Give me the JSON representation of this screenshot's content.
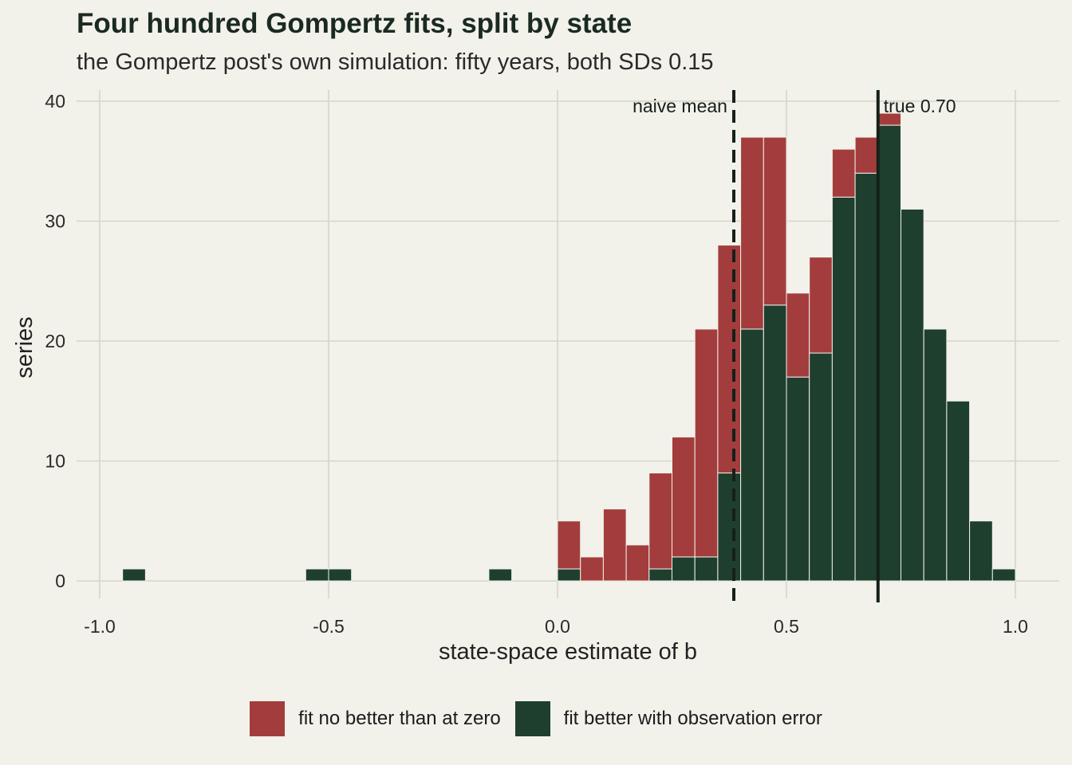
{
  "title": "Four hundred Gompertz fits, split by state",
  "subtitle": "the Gompertz post's own simulation: fifty years, both SDs 0.15",
  "colors": {
    "background": "#f2f1ea",
    "grid": "#d6d6c6",
    "bad": "#a33d3d",
    "good": "#1f3f2e",
    "ink": "#15201a"
  },
  "chart_data": {
    "type": "bar",
    "stacked": true,
    "xlabel": "state-space estimate of b",
    "ylabel": "series",
    "xlim": [
      -1.05,
      1.1
    ],
    "ylim": [
      0,
      40
    ],
    "xticks": [
      -1.0,
      -0.5,
      0.0,
      0.5,
      1.0
    ],
    "xtick_labels": [
      "-1.0",
      "-0.5",
      "0.0",
      "0.5",
      "1.0"
    ],
    "yticks": [
      0,
      10,
      20,
      30,
      40
    ],
    "ytick_labels": [
      "0",
      "10",
      "20",
      "30",
      "40"
    ],
    "grid": true,
    "legend_position": "bottom",
    "bin_width": 0.05,
    "bins": [
      {
        "x": -0.925,
        "good": 1,
        "bad": 0
      },
      {
        "x": -0.525,
        "good": 1,
        "bad": 0
      },
      {
        "x": -0.475,
        "good": 1,
        "bad": 0
      },
      {
        "x": -0.125,
        "good": 1,
        "bad": 0
      },
      {
        "x": 0.025,
        "good": 1,
        "bad": 4
      },
      {
        "x": 0.075,
        "good": 0,
        "bad": 2
      },
      {
        "x": 0.125,
        "good": 0,
        "bad": 6
      },
      {
        "x": 0.175,
        "good": 0,
        "bad": 3
      },
      {
        "x": 0.225,
        "good": 1,
        "bad": 8
      },
      {
        "x": 0.275,
        "good": 2,
        "bad": 10
      },
      {
        "x": 0.325,
        "good": 2,
        "bad": 19
      },
      {
        "x": 0.375,
        "good": 9,
        "bad": 19
      },
      {
        "x": 0.425,
        "good": 21,
        "bad": 16
      },
      {
        "x": 0.475,
        "good": 23,
        "bad": 14
      },
      {
        "x": 0.525,
        "good": 17,
        "bad": 7
      },
      {
        "x": 0.575,
        "good": 19,
        "bad": 8
      },
      {
        "x": 0.625,
        "good": 32,
        "bad": 4
      },
      {
        "x": 0.675,
        "good": 34,
        "bad": 3
      },
      {
        "x": 0.725,
        "good": 38,
        "bad": 1
      },
      {
        "x": 0.775,
        "good": 31,
        "bad": 0
      },
      {
        "x": 0.825,
        "good": 21,
        "bad": 0
      },
      {
        "x": 0.875,
        "good": 15,
        "bad": 0
      },
      {
        "x": 0.925,
        "good": 5,
        "bad": 0
      },
      {
        "x": 0.975,
        "good": 1,
        "bad": 0
      }
    ],
    "series": [
      {
        "name": "fit no better than at zero",
        "key": "bad"
      },
      {
        "name": "fit better with observation error",
        "key": "good"
      }
    ],
    "reference_lines": [
      {
        "x": 0.385,
        "label": "naive mean",
        "style": "dashed"
      },
      {
        "x": 0.7,
        "label": "true 0.70",
        "style": "solid"
      }
    ]
  }
}
